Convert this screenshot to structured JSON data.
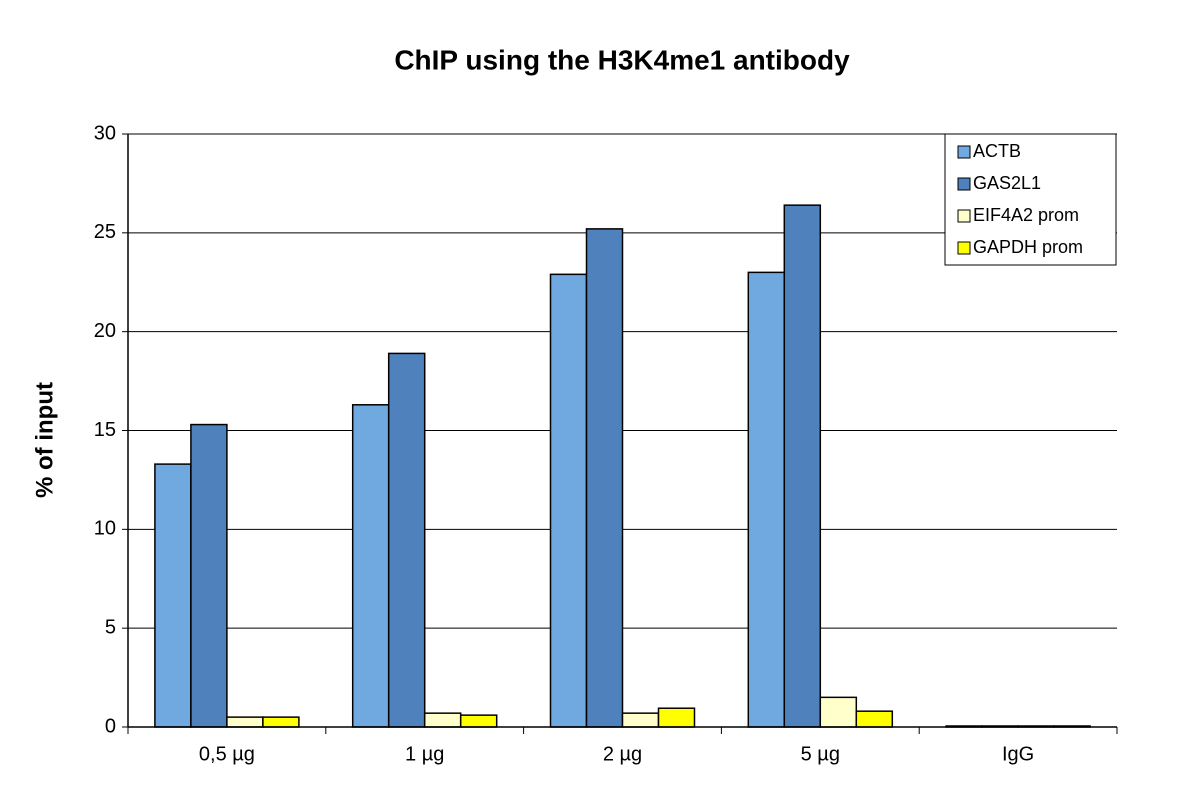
{
  "chart_data": {
    "type": "bar",
    "title": "ChIP using the H3K4me1 antibody",
    "y_label": "% of input",
    "categories": [
      "0,5 µg",
      "1 µg",
      "2 µg",
      "5 µg",
      "IgG"
    ],
    "series": [
      {
        "name": "ACTB",
        "color": "#70a8e0",
        "values": [
          13.3,
          16.3,
          22.9,
          23.0,
          0.05
        ]
      },
      {
        "name": "GAS2L1",
        "color": "#4f81bd",
        "values": [
          15.3,
          18.9,
          25.2,
          26.4,
          0.05
        ]
      },
      {
        "name": "EIF4A2 prom",
        "color": "#ffffcc",
        "values": [
          0.5,
          0.7,
          0.7,
          1.5,
          0.05
        ]
      },
      {
        "name": "GAPDH prom",
        "color": "#ffff00",
        "values": [
          0.5,
          0.6,
          0.95,
          0.8,
          0.05
        ]
      }
    ],
    "ylim": [
      0,
      30
    ],
    "yticks": [
      0,
      5,
      10,
      15,
      20,
      25,
      30
    ],
    "grid": true,
    "legend": "upper-right"
  }
}
